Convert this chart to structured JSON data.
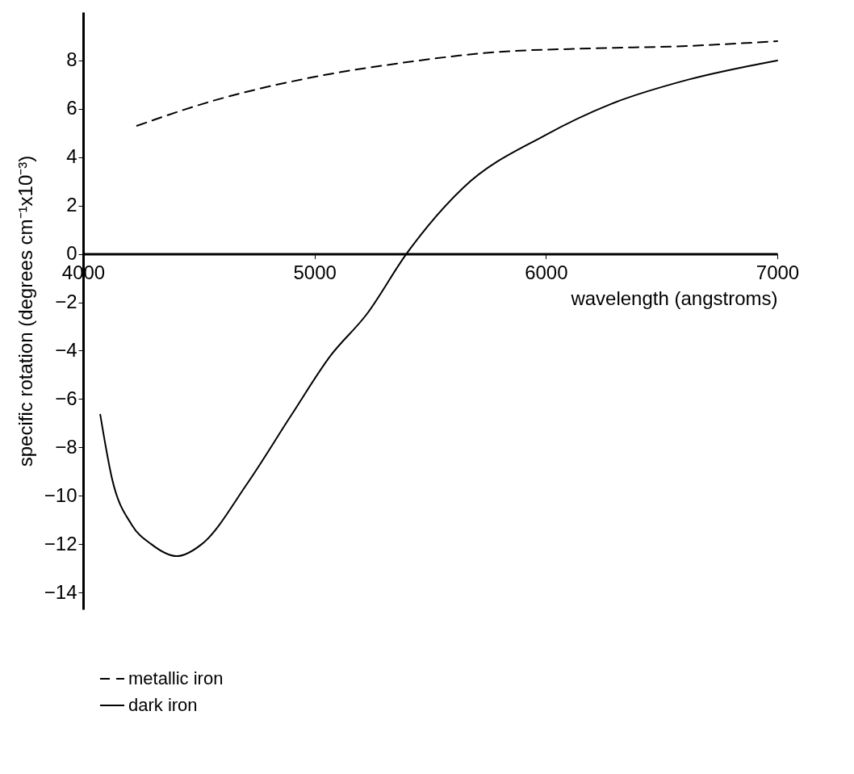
{
  "chart_data": {
    "type": "line",
    "xlabel": "wavelength  (angstroms)",
    "ylabel": "specific rotation  (degrees cm⁻¹x10⁻³)",
    "xlim": [
      4000,
      7000
    ],
    "xticks": [
      4000,
      5000,
      6000,
      7000
    ],
    "ylim": [
      -14.7,
      10
    ],
    "yticks": [
      -14,
      -12,
      -10,
      -8,
      -6,
      -4,
      -2,
      0,
      2,
      4,
      6,
      8
    ],
    "grid": false,
    "legend": "bottom left",
    "series": [
      {
        "name": "metallic iron",
        "color": "#000000",
        "line_style": "dashed",
        "x": [
          4233,
          4550,
          4962,
          5377,
          5789,
          6200,
          6612,
          7000
        ],
        "values": [
          5.3,
          6.3,
          7.25,
          7.9,
          8.35,
          8.5,
          8.6,
          8.8
        ]
      },
      {
        "name": "dark iron",
        "color": "#000000",
        "line_style": "solid",
        "x": [
          4074,
          4125,
          4210,
          4294,
          4405,
          4513,
          4709,
          4901,
          5070,
          5225,
          5397,
          5644,
          5995,
          6281,
          6612,
          7000
        ],
        "values": [
          -6.65,
          -9.3,
          -11.2,
          -12.0,
          -12.5,
          -12.0,
          -9.5,
          -6.65,
          -4.2,
          -2.5,
          0,
          2.75,
          4.9,
          6.2,
          7.2,
          8.0
        ]
      }
    ]
  }
}
